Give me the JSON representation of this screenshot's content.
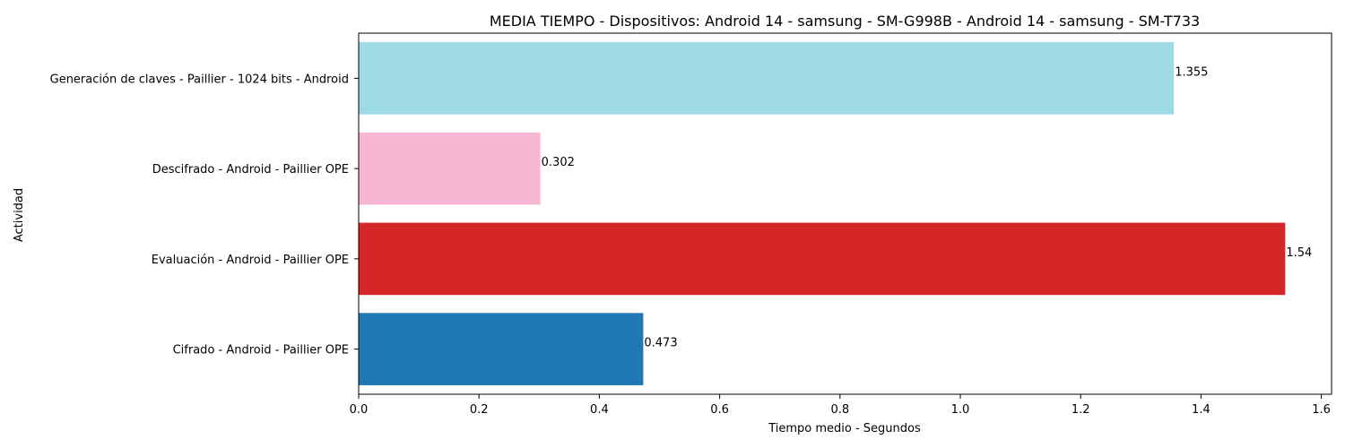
{
  "chart_data": {
    "type": "bar",
    "orientation": "horizontal",
    "title": "MEDIA TIEMPO - Dispositivos: Android 14 - samsung - SM-G998B - Android 14 - samsung - SM-T733",
    "xlabel": "Tiempo medio - Segundos",
    "ylabel": "Actividad",
    "xlim": [
      0,
      1.617
    ],
    "grid": false,
    "x_ticks": [
      "0.0",
      "0.2",
      "0.4",
      "0.6",
      "0.8",
      "1.0",
      "1.2",
      "1.4",
      "1.6"
    ],
    "categories": [
      "Generación de claves - Paillier - 1024 bits - Android",
      "Descifrado - Android - Paillier OPE",
      "Evaluación - Android - Paillier OPE",
      "Cifrado - Android - Paillier OPE"
    ],
    "values": [
      1.355,
      0.302,
      1.54,
      0.473
    ],
    "value_labels": [
      "1.355",
      "0.302",
      "1.54",
      "0.473"
    ],
    "colors": [
      "#9edae5",
      "#f7b6d2",
      "#d62728",
      "#1f77b4"
    ]
  }
}
